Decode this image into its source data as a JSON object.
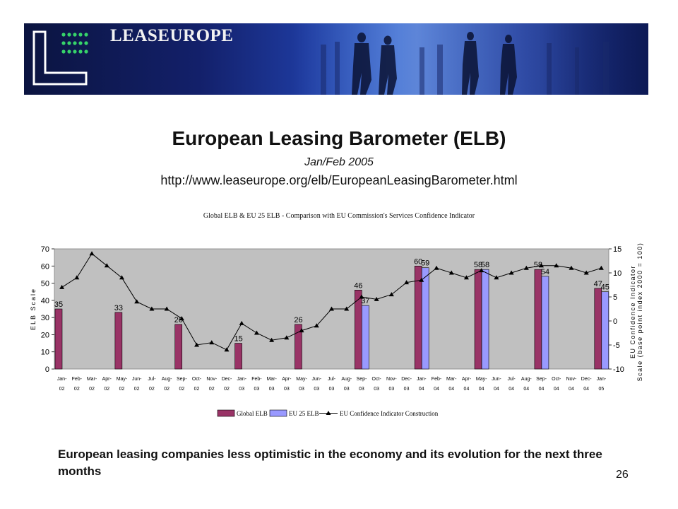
{
  "banner": {
    "brand": "LEASEUROPE"
  },
  "slide": {
    "title": "European Leasing Barometer (ELB)",
    "date": "Jan/Feb 2005",
    "url": "http://www.leaseurope.org/elb/EuropeanLeasingBarometer.html",
    "caption": "European leasing companies less optimistic in the economy and its evolution for the next three months",
    "page_number": "26"
  },
  "colors": {
    "global_bar": "#993366",
    "eu25_bar": "#9999ff",
    "plot_bg": "#c0c0c0",
    "line": "#000000"
  },
  "chart_data": {
    "type": "bar",
    "title": "Global ELB & EU 25 ELB - Comparison with EU Commission's Services Confidence Indicator",
    "categories": [
      [
        "Jan-",
        "02"
      ],
      [
        "Feb-",
        "02"
      ],
      [
        "Mar-",
        "02"
      ],
      [
        "Apr-",
        "02"
      ],
      [
        "May-",
        "02"
      ],
      [
        "Jun-",
        "02"
      ],
      [
        "Jul-",
        "02"
      ],
      [
        "Aug-",
        "02"
      ],
      [
        "Sep-",
        "02"
      ],
      [
        "Oct-",
        "02"
      ],
      [
        "Nov-",
        "02"
      ],
      [
        "Dec-",
        "02"
      ],
      [
        "Jan-",
        "03"
      ],
      [
        "Feb-",
        "03"
      ],
      [
        "Mar-",
        "03"
      ],
      [
        "Apr-",
        "03"
      ],
      [
        "May-",
        "03"
      ],
      [
        "Jun-",
        "03"
      ],
      [
        "Jul-",
        "03"
      ],
      [
        "Aug-",
        "03"
      ],
      [
        "Sep-",
        "03"
      ],
      [
        "Oct-",
        "03"
      ],
      [
        "Nov-",
        "03"
      ],
      [
        "Dec-",
        "03"
      ],
      [
        "Jan-",
        "04"
      ],
      [
        "Feb-",
        "04"
      ],
      [
        "Mar-",
        "04"
      ],
      [
        "Apr-",
        "04"
      ],
      [
        "May-",
        "04"
      ],
      [
        "Jun-",
        "04"
      ],
      [
        "Jul-",
        "04"
      ],
      [
        "Aug-",
        "04"
      ],
      [
        "Sep-",
        "04"
      ],
      [
        "Oct-",
        "04"
      ],
      [
        "Nov-",
        "04"
      ],
      [
        "Dec-",
        "04"
      ],
      [
        "Jan-",
        "05"
      ]
    ],
    "ylabel_left": "ELB Scale",
    "ylabel_right": [
      "EU Confidence Indicator",
      "Scale (base point index 2000 = 100)"
    ],
    "ylim_left": [
      0,
      70
    ],
    "yticks_left": [
      0,
      10,
      20,
      30,
      40,
      50,
      60,
      70
    ],
    "ylim_right": [
      -10,
      15
    ],
    "yticks_right": [
      -10,
      -5,
      0,
      5,
      10,
      15
    ],
    "series": [
      {
        "name": "Global ELB",
        "kind": "bar",
        "values": [
          35,
          null,
          null,
          null,
          33,
          null,
          null,
          null,
          26,
          null,
          null,
          null,
          15,
          null,
          null,
          null,
          26,
          null,
          null,
          null,
          46,
          null,
          null,
          null,
          60,
          null,
          null,
          null,
          58,
          null,
          null,
          null,
          58,
          null,
          null,
          null,
          47
        ]
      },
      {
        "name": "EU 25 ELB",
        "kind": "bar",
        "values": [
          null,
          null,
          null,
          null,
          null,
          null,
          null,
          null,
          null,
          null,
          null,
          null,
          null,
          null,
          null,
          null,
          null,
          null,
          null,
          null,
          37,
          null,
          null,
          null,
          59,
          null,
          null,
          null,
          58,
          null,
          null,
          null,
          54,
          null,
          null,
          null,
          45
        ]
      },
      {
        "name": "EU Confidence Indicator Construction",
        "kind": "line",
        "axis": "right",
        "values": [
          7,
          9,
          14,
          11.5,
          9,
          4,
          2.5,
          2.5,
          0.5,
          -5,
          -4.5,
          -6,
          -0.5,
          -2.5,
          -4,
          -3.5,
          -2,
          -1,
          2.5,
          2.5,
          5,
          4.5,
          5.5,
          8,
          8.5,
          11,
          10,
          9,
          10.5,
          9,
          10,
          11,
          11.5,
          11.5,
          11,
          10,
          11
        ]
      }
    ],
    "legend": [
      "Global ELB",
      "EU 25 ELB",
      "EU Confidence Indicator Construction"
    ],
    "legend_position": "bottom",
    "grid": false
  }
}
